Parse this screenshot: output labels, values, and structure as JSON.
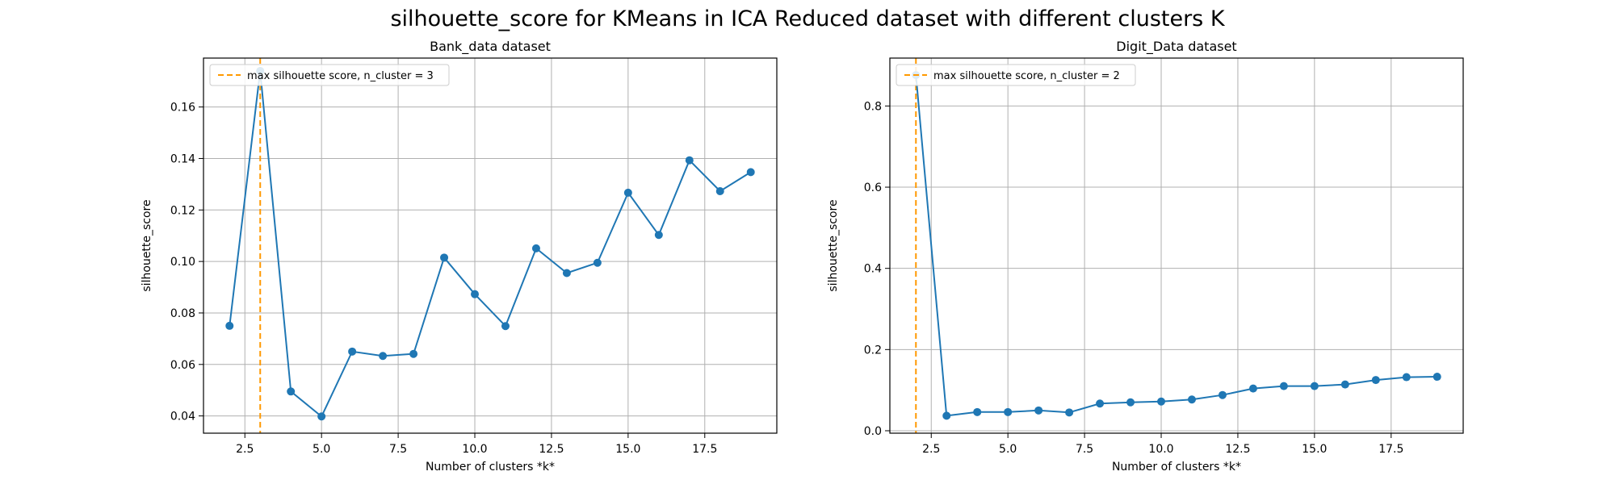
{
  "figure": {
    "suptitle": "silhouette_score for KMeans in ICA Reduced dataset with different clusters K"
  },
  "colors": {
    "line": "#1f77b4",
    "vline": "#ff9900",
    "grid": "#b0b0b0"
  },
  "chart_data": [
    {
      "type": "line",
      "title": "Bank_data dataset",
      "xlabel": "Number of clusters *k*",
      "ylabel": "silhouette_score",
      "xlim": [
        1.15,
        19.85
      ],
      "ylim": [
        0.0333,
        0.179
      ],
      "xticks": [
        2.5,
        5.0,
        7.5,
        10.0,
        12.5,
        15.0,
        17.5
      ],
      "xtick_labels": [
        "2.5",
        "5.0",
        "7.5",
        "10.0",
        "12.5",
        "15.0",
        "17.5"
      ],
      "yticks": [
        0.04,
        0.06,
        0.08,
        0.1,
        0.12,
        0.14,
        0.16
      ],
      "ytick_labels": [
        "0.04",
        "0.06",
        "0.08",
        "0.10",
        "0.12",
        "0.14",
        "0.16"
      ],
      "grid": true,
      "legend_position": "upper-left",
      "x": [
        2,
        3,
        4,
        5,
        6,
        7,
        8,
        9,
        10,
        11,
        12,
        13,
        14,
        15,
        16,
        17,
        18,
        19
      ],
      "series": [
        {
          "values": [
            0.075,
            0.174,
            0.0495,
            0.0398,
            0.065,
            0.0633,
            0.0641,
            0.1015,
            0.0873,
            0.0749,
            0.1051,
            0.0955,
            0.0995,
            0.1267,
            0.1103,
            0.1393,
            0.1273,
            0.1347
          ]
        }
      ],
      "vline": {
        "x": 3,
        "label": "max silhouette score, n_cluster = 3"
      }
    },
    {
      "type": "line",
      "title": "Digit_Data dataset",
      "xlabel": "Number of clusters *k*",
      "ylabel": "silhouette_score",
      "xlim": [
        1.15,
        19.85
      ],
      "ylim": [
        -0.006,
        0.918
      ],
      "xticks": [
        2.5,
        5.0,
        7.5,
        10.0,
        12.5,
        15.0,
        17.5
      ],
      "xtick_labels": [
        "2.5",
        "5.0",
        "7.5",
        "10.0",
        "12.5",
        "15.0",
        "17.5"
      ],
      "yticks": [
        0.0,
        0.2,
        0.4,
        0.6,
        0.8
      ],
      "ytick_labels": [
        "0.0",
        "0.2",
        "0.4",
        "0.6",
        "0.8"
      ],
      "grid": true,
      "legend_position": "upper-left",
      "x": [
        2,
        3,
        4,
        5,
        6,
        7,
        8,
        9,
        10,
        11,
        12,
        13,
        14,
        15,
        16,
        17,
        18,
        19
      ],
      "series": [
        {
          "values": [
            0.876,
            0.037,
            0.046,
            0.046,
            0.05,
            0.045,
            0.067,
            0.07,
            0.072,
            0.077,
            0.088,
            0.104,
            0.11,
            0.11,
            0.114,
            0.125,
            0.132,
            0.133
          ]
        }
      ],
      "vline": {
        "x": 2,
        "label": "max silhouette score, n_cluster = 2"
      }
    }
  ]
}
